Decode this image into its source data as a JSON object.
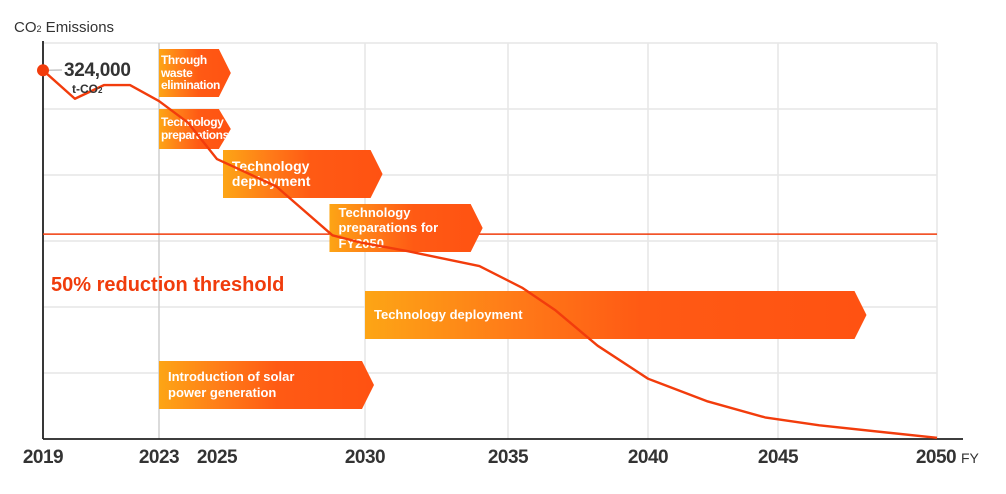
{
  "chart_data": {
    "type": "line",
    "title": "",
    "ylabel": "CO₂ Emissions",
    "xlabel": "FY",
    "x_ticks": [
      2019,
      2023,
      2025,
      2030,
      2035,
      2040,
      2045,
      2050
    ],
    "x_tick_labels": [
      "2019",
      "2023",
      "2025",
      "2030",
      "2035",
      "2040",
      "2045",
      "2050"
    ],
    "xlim": [
      2019,
      2050
    ],
    "ylim": [
      0,
      348000
    ],
    "y_gridlines": 6,
    "grid": true,
    "series": [
      {
        "name": "CO2 Emissions (t-CO2)",
        "color": "#f23c0c",
        "x": [
          2019,
          2020.1,
          2021.1,
          2022,
          2023,
          2024,
          2025,
          2027,
          2028.9,
          2029.8,
          2031.5,
          2034,
          2035.5,
          2036.7,
          2038.2,
          2040,
          2042.3,
          2044.5,
          2046.3,
          2050
        ],
        "values": [
          324000,
          299000,
          311000,
          311000,
          297000,
          278000,
          246000,
          222000,
          179000,
          173000,
          165000,
          152000,
          133000,
          113000,
          82000,
          53000,
          33000,
          19000,
          12000,
          1000
        ]
      }
    ],
    "annotations": {
      "start_value": "324,000",
      "start_unit_prefix": "t-CO",
      "start_unit_sub": "2",
      "threshold_label": "50% reduction threshold",
      "threshold_value": 180000,
      "threshold_color": "#f03c0c"
    },
    "initiatives": [
      {
        "label": [
          "Through",
          "waste",
          "elimination"
        ],
        "start": 2023,
        "end": 2025.4,
        "row": 1
      },
      {
        "label": [
          "Technology",
          "preparations"
        ],
        "start": 2023,
        "end": 2025.4,
        "row": 2
      },
      {
        "label": [
          "Technology",
          "deployment"
        ],
        "start": 2025.2,
        "end": 2030.3,
        "row": 3
      },
      {
        "label": [
          "Technology",
          "preparations for",
          "FY2050"
        ],
        "start": 2028.8,
        "end": 2033.8,
        "row": 4
      },
      {
        "label": [
          "Technology deployment"
        ],
        "start": 2030,
        "end": 2047.5,
        "row": 5
      },
      {
        "label": [
          "Introduction of solar",
          "power generation"
        ],
        "start": 2023,
        "end": 2030,
        "row": 6
      }
    ]
  },
  "labels": {
    "ylabel_main": "CO",
    "ylabel_sub": "2",
    "ylabel_rest": " Emissions",
    "x_unit": "FY"
  }
}
